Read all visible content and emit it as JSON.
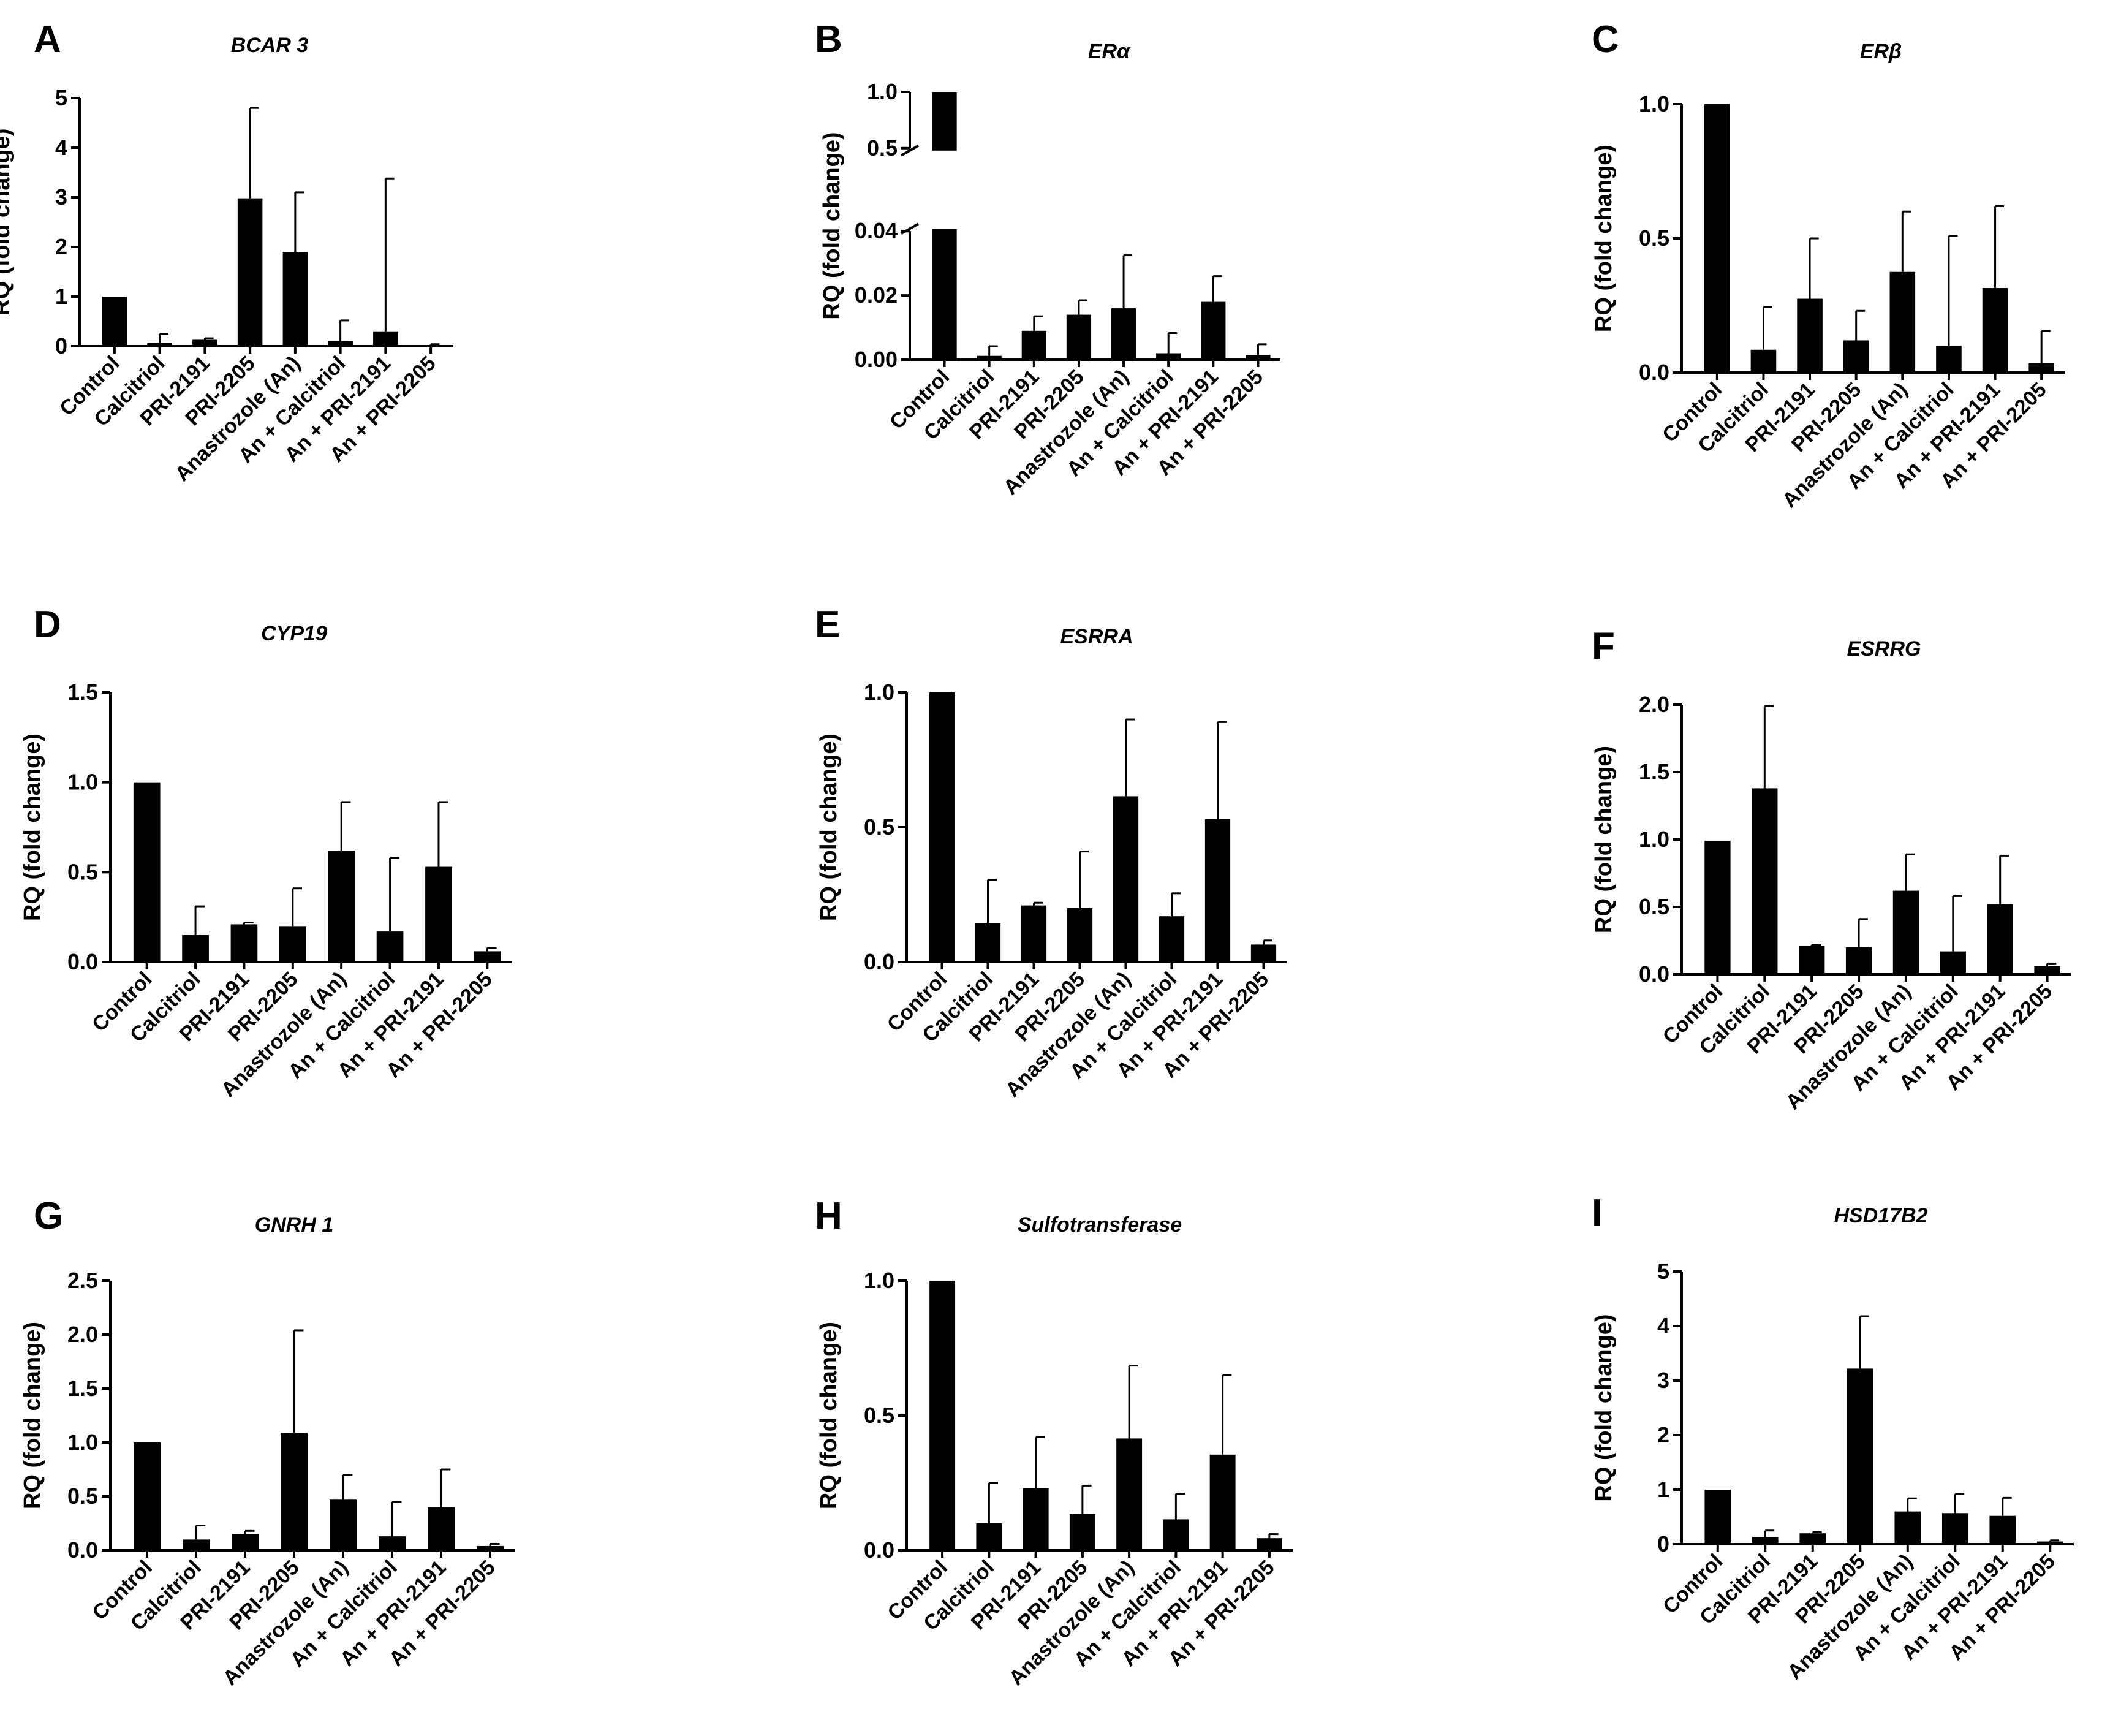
{
  "chart_data": [
    {
      "id": "A",
      "type": "bar",
      "letter": "A",
      "title": "BCAR 3",
      "ylabel": "RQ (fold change)",
      "ylim": [
        0,
        5
      ],
      "yticks": [
        0,
        1,
        2,
        3,
        4,
        5
      ],
      "ytick_labels": [
        "0",
        "1",
        "2",
        "3",
        "4",
        "5"
      ],
      "categories": [
        "Control",
        "Calcitriol",
        "PRI-2191",
        "PRI-2205",
        "Anastrozole (An)",
        "An + Calcitriol",
        "An + PRI-2191",
        "An + PRI-2205"
      ],
      "values": [
        1.0,
        0.07,
        0.13,
        2.98,
        1.9,
        0.1,
        0.3,
        0.02
      ],
      "errors": [
        0,
        0.18,
        0.03,
        1.82,
        1.2,
        0.42,
        3.08,
        0.02
      ]
    },
    {
      "id": "B",
      "type": "bar",
      "letter": "B",
      "title": "ERα",
      "ylabel": "RQ (fold change)",
      "ylim": [
        0,
        1.0
      ],
      "axis_break": {
        "lower_max": 0.04,
        "upper_min": 0.5,
        "upper_max": 1.0
      },
      "yticks": [
        0,
        0.02,
        0.04,
        0.5,
        1.0
      ],
      "ytick_labels": [
        "0.00",
        "0.02",
        "0.04",
        "0.5",
        "1.0"
      ],
      "categories": [
        "Control",
        "Calcitriol",
        "PRI-2191",
        "PRI-2205",
        "Anastrozole (An)",
        "An + Calcitriol",
        "An + PRI-2191",
        "An + PRI-2205"
      ],
      "values": [
        1.0,
        0.0012,
        0.009,
        0.014,
        0.016,
        0.002,
        0.018,
        0.0015
      ],
      "errors": [
        0,
        0.003,
        0.0045,
        0.0045,
        0.0165,
        0.0063,
        0.008,
        0.0033
      ]
    },
    {
      "id": "C",
      "type": "bar",
      "letter": "C",
      "title": "ERβ",
      "ylabel": "RQ (fold change)",
      "ylim": [
        0,
        1.0
      ],
      "yticks": [
        0,
        0.5,
        1.0
      ],
      "ytick_labels": [
        "0.0",
        "0.5",
        "1.0"
      ],
      "categories": [
        "Control",
        "Calcitriol",
        "PRI-2191",
        "PRI-2205",
        "Anastrozole (An)",
        "An + Calcitriol",
        "An + PRI-2191",
        "An + PRI-2205"
      ],
      "values": [
        1.0,
        0.085,
        0.275,
        0.12,
        0.375,
        0.1,
        0.315,
        0.035
      ],
      "errors": [
        0,
        0.16,
        0.225,
        0.11,
        0.225,
        0.41,
        0.305,
        0.12
      ]
    },
    {
      "id": "D",
      "type": "bar",
      "letter": "D",
      "title": "CYP19",
      "ylabel": "RQ (fold change)",
      "ylim": [
        0,
        1.5
      ],
      "yticks": [
        0,
        0.5,
        1.0,
        1.5
      ],
      "ytick_labels": [
        "0.0",
        "0.5",
        "1.0",
        "1.5"
      ],
      "categories": [
        "Control",
        "Calcitriol",
        "PRI-2191",
        "PRI-2205",
        "Anastrozole (An)",
        "An + Calcitriol",
        "An + PRI-2191",
        "An + PRI-2205"
      ],
      "values": [
        1.0,
        0.15,
        0.21,
        0.2,
        0.62,
        0.17,
        0.53,
        0.06
      ],
      "errors": [
        0,
        0.16,
        0.01,
        0.21,
        0.27,
        0.41,
        0.36,
        0.02
      ]
    },
    {
      "id": "E",
      "type": "bar",
      "letter": "E",
      "title": "ESRRA",
      "ylabel": "RQ (fold change)",
      "ylim": [
        0,
        1.0
      ],
      "yticks": [
        0,
        0.5,
        1.0
      ],
      "ytick_labels": [
        "0.0",
        "0.5",
        "1.0"
      ],
      "categories": [
        "Control",
        "Calcitriol",
        "PRI-2191",
        "PRI-2205",
        "Anastrozole (An)",
        "An + Calcitriol",
        "An + PRI-2191",
        "An + PRI-2205"
      ],
      "values": [
        1.0,
        0.145,
        0.21,
        0.2,
        0.615,
        0.17,
        0.53,
        0.065
      ],
      "errors": [
        0,
        0.16,
        0.01,
        0.21,
        0.285,
        0.085,
        0.36,
        0.015
      ]
    },
    {
      "id": "F",
      "type": "bar",
      "letter": "F",
      "title": "ESRRG",
      "ylabel": "RQ (fold change)",
      "ylim": [
        0,
        2.0
      ],
      "yticks": [
        0,
        0.5,
        1.0,
        1.5,
        2.0
      ],
      "ytick_labels": [
        "0.0",
        "0.5",
        "1.0",
        "1.5",
        "2.0"
      ],
      "categories": [
        "Control",
        "Calcitriol",
        "PRI-2191",
        "PRI-2205",
        "Anastrozole (An)",
        "An + Calcitriol",
        "An + PRI-2191",
        "An + PRI-2205"
      ],
      "values": [
        0.99,
        1.38,
        0.21,
        0.2,
        0.62,
        0.17,
        0.52,
        0.06
      ],
      "errors": [
        0,
        0.61,
        0.01,
        0.21,
        0.27,
        0.41,
        0.36,
        0.02
      ]
    },
    {
      "id": "G",
      "type": "bar",
      "letter": "G",
      "title": "GNRH 1",
      "ylabel": "RQ (fold change)",
      "ylim": [
        0,
        2.5
      ],
      "yticks": [
        0,
        0.5,
        1.0,
        1.5,
        2.0,
        2.5
      ],
      "ytick_labels": [
        "0.0",
        "0.5",
        "1.0",
        "1.5",
        "2.0",
        "2.5"
      ],
      "categories": [
        "Control",
        "Calcitriol",
        "PRI-2191",
        "PRI-2205",
        "Anastrozole (An)",
        "An + Calcitriol",
        "An + PRI-2191",
        "An + PRI-2205"
      ],
      "values": [
        1.0,
        0.1,
        0.15,
        1.09,
        0.47,
        0.13,
        0.4,
        0.04
      ],
      "errors": [
        0,
        0.13,
        0.03,
        0.95,
        0.23,
        0.32,
        0.35,
        0.02
      ]
    },
    {
      "id": "H",
      "type": "bar",
      "letter": "H",
      "title": "Sulfotransferase",
      "ylabel": "RQ (fold change)",
      "ylim": [
        0,
        1.0
      ],
      "yticks": [
        0,
        0.5,
        1.0
      ],
      "ytick_labels": [
        "0.0",
        "0.5",
        "1.0"
      ],
      "categories": [
        "Control",
        "Calcitriol",
        "PRI-2191",
        "PRI-2205",
        "Anastrozole (An)",
        "An + Calcitriol",
        "An + PRI-2191",
        "An + PRI-2205"
      ],
      "values": [
        1.0,
        0.1,
        0.23,
        0.135,
        0.415,
        0.115,
        0.355,
        0.045
      ],
      "errors": [
        0,
        0.15,
        0.19,
        0.105,
        0.27,
        0.095,
        0.295,
        0.015
      ]
    },
    {
      "id": "I",
      "type": "bar",
      "letter": "I",
      "title": "HSD17B2",
      "ylabel": "RQ (fold change)",
      "ylim": [
        0,
        5
      ],
      "yticks": [
        0,
        1,
        2,
        3,
        4,
        5
      ],
      "ytick_labels": [
        "0",
        "1",
        "2",
        "3",
        "4",
        "5"
      ],
      "categories": [
        "Control",
        "Calcitriol",
        "PRI-2191",
        "PRI-2205",
        "Anastrozole (An)",
        "An + Calcitriol",
        "An + PRI-2191",
        "An + PRI-2205"
      ],
      "values": [
        1.0,
        0.13,
        0.2,
        3.22,
        0.6,
        0.57,
        0.52,
        0.05
      ],
      "errors": [
        0,
        0.12,
        0.02,
        0.96,
        0.24,
        0.35,
        0.33,
        0.02
      ]
    }
  ]
}
